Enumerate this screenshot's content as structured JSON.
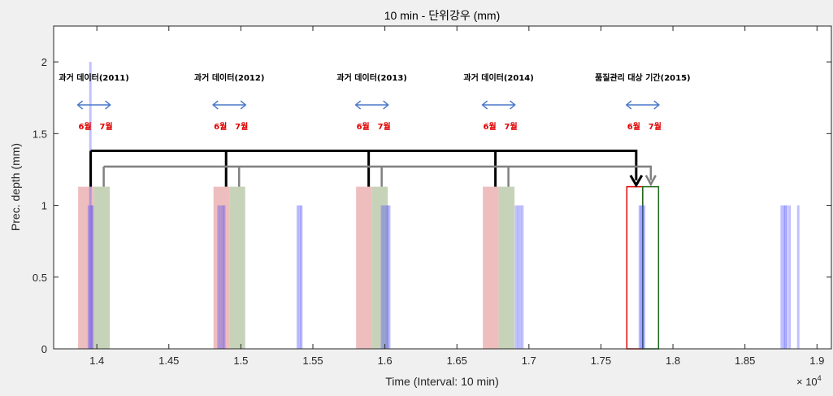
{
  "chart_data": {
    "type": "bar",
    "title": "10 min - 단위강우 (mm)",
    "xlabel": "Time (Interval: 10 min)",
    "ylabel": "Prec. depth (mm)",
    "x_exponent_label": "× 10",
    "x_exponent_power": "4",
    "xlim": [
      13700,
      19100
    ],
    "ylim": [
      0,
      2.25
    ],
    "x_ticks": [
      1.4,
      1.45,
      1.5,
      1.55,
      1.6,
      1.65,
      1.7,
      1.75,
      1.8,
      1.85,
      1.9
    ],
    "x_tick_labels": [
      "1.4",
      "1.45",
      "1.5",
      "1.55",
      "1.6",
      "1.65",
      "1.7",
      "1.75",
      "1.8",
      "1.85",
      "1.9"
    ],
    "y_ticks": [
      0,
      0.5,
      1,
      1.5,
      2
    ],
    "y_tick_labels": [
      "0",
      "0.5",
      "1",
      "1.5",
      "2"
    ],
    "grid": false,
    "series": [
      {
        "color": "#4d4dff",
        "x": [
          13945,
          13955,
          13962,
          13970,
          14845,
          14860,
          14875,
          14885,
          15395,
          15410,
          15420,
          15980,
          15995,
          16010,
          16020,
          16030,
          16910,
          16925,
          16940,
          16955,
          17770,
          17780,
          17790,
          17800,
          18755,
          18770,
          18780,
          18790,
          18810,
          18870
        ],
        "values": [
          1,
          2,
          1,
          1,
          1,
          1,
          1,
          1,
          1,
          1,
          1,
          1,
          1,
          1,
          1,
          1,
          1,
          1,
          1,
          1,
          1,
          1,
          1,
          1,
          1,
          1,
          1,
          1,
          1,
          1
        ]
      }
    ],
    "highlight_periods": [
      {
        "label": "과거 데이터(2011)",
        "jun": [
          13870,
          13980
        ],
        "jul": [
          13980,
          14090
        ]
      },
      {
        "label": "과거 데이터(2012)",
        "jun": [
          14810,
          14920
        ],
        "jul": [
          14920,
          15030
        ]
      },
      {
        "label": "과거 데이터(2013)",
        "jun": [
          15800,
          15910
        ],
        "jul": [
          15910,
          16020
        ]
      },
      {
        "label": "과거 데이터(2014)",
        "jun": [
          16680,
          16790
        ],
        "jul": [
          16790,
          16900
        ]
      },
      {
        "label": "품질관리 대상 기간(2015)",
        "jun": [
          17680,
          17790
        ],
        "jul": [
          17790,
          17900
        ]
      }
    ],
    "month_labels": {
      "jun": "6월",
      "jul": "7월"
    },
    "highlight_colors": {
      "jun": "#e8a8a8",
      "jul": "#b8c8a8",
      "target_jun_edge": "#e00000",
      "target_jul_edge": "#1a6b1a",
      "arrow_black": "#000000",
      "arrow_gray": "#808080",
      "span_arrow": "#4a78c8"
    }
  }
}
